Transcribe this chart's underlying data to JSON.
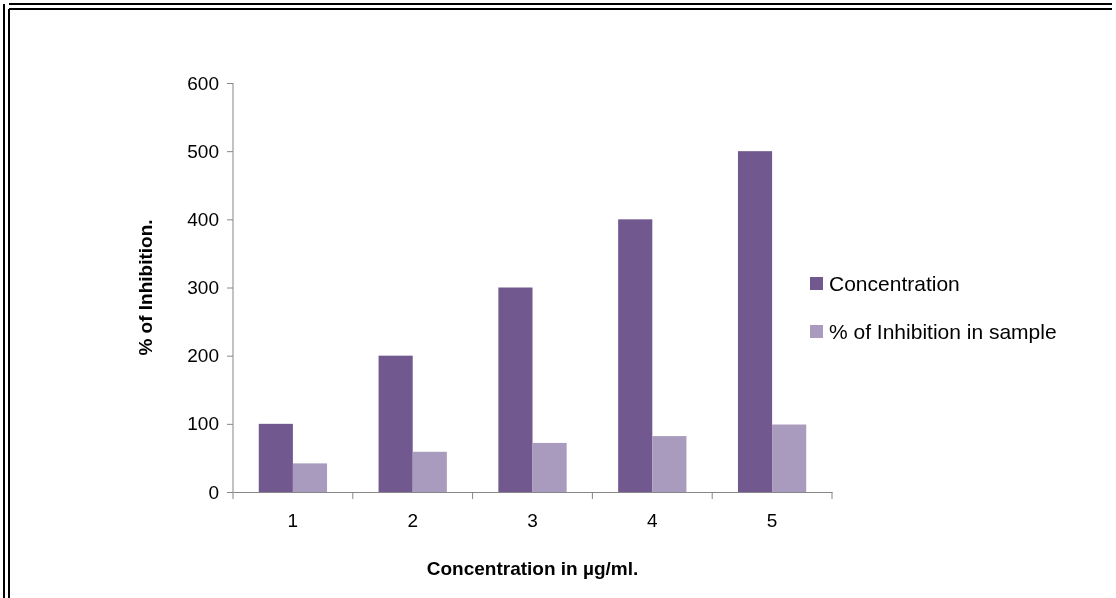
{
  "chart_data": {
    "type": "bar",
    "xlabel": "Concentration in µg/ml.",
    "ylabel": "% of Inhibition.",
    "categories": [
      "1",
      "2",
      "3",
      "4",
      "5"
    ],
    "series": [
      {
        "name": "Concentration",
        "color": "#71588f",
        "values": [
          100,
          200,
          300,
          400,
          500
        ]
      },
      {
        "name": "% of Inhibition in sample",
        "color": "#a99bbd",
        "values": [
          42,
          59,
          72,
          82,
          99
        ]
      }
    ],
    "ylim": [
      0,
      600
    ],
    "yticks": [
      0,
      100,
      200,
      300,
      400,
      500,
      600
    ],
    "grid": false,
    "legend": "right"
  }
}
